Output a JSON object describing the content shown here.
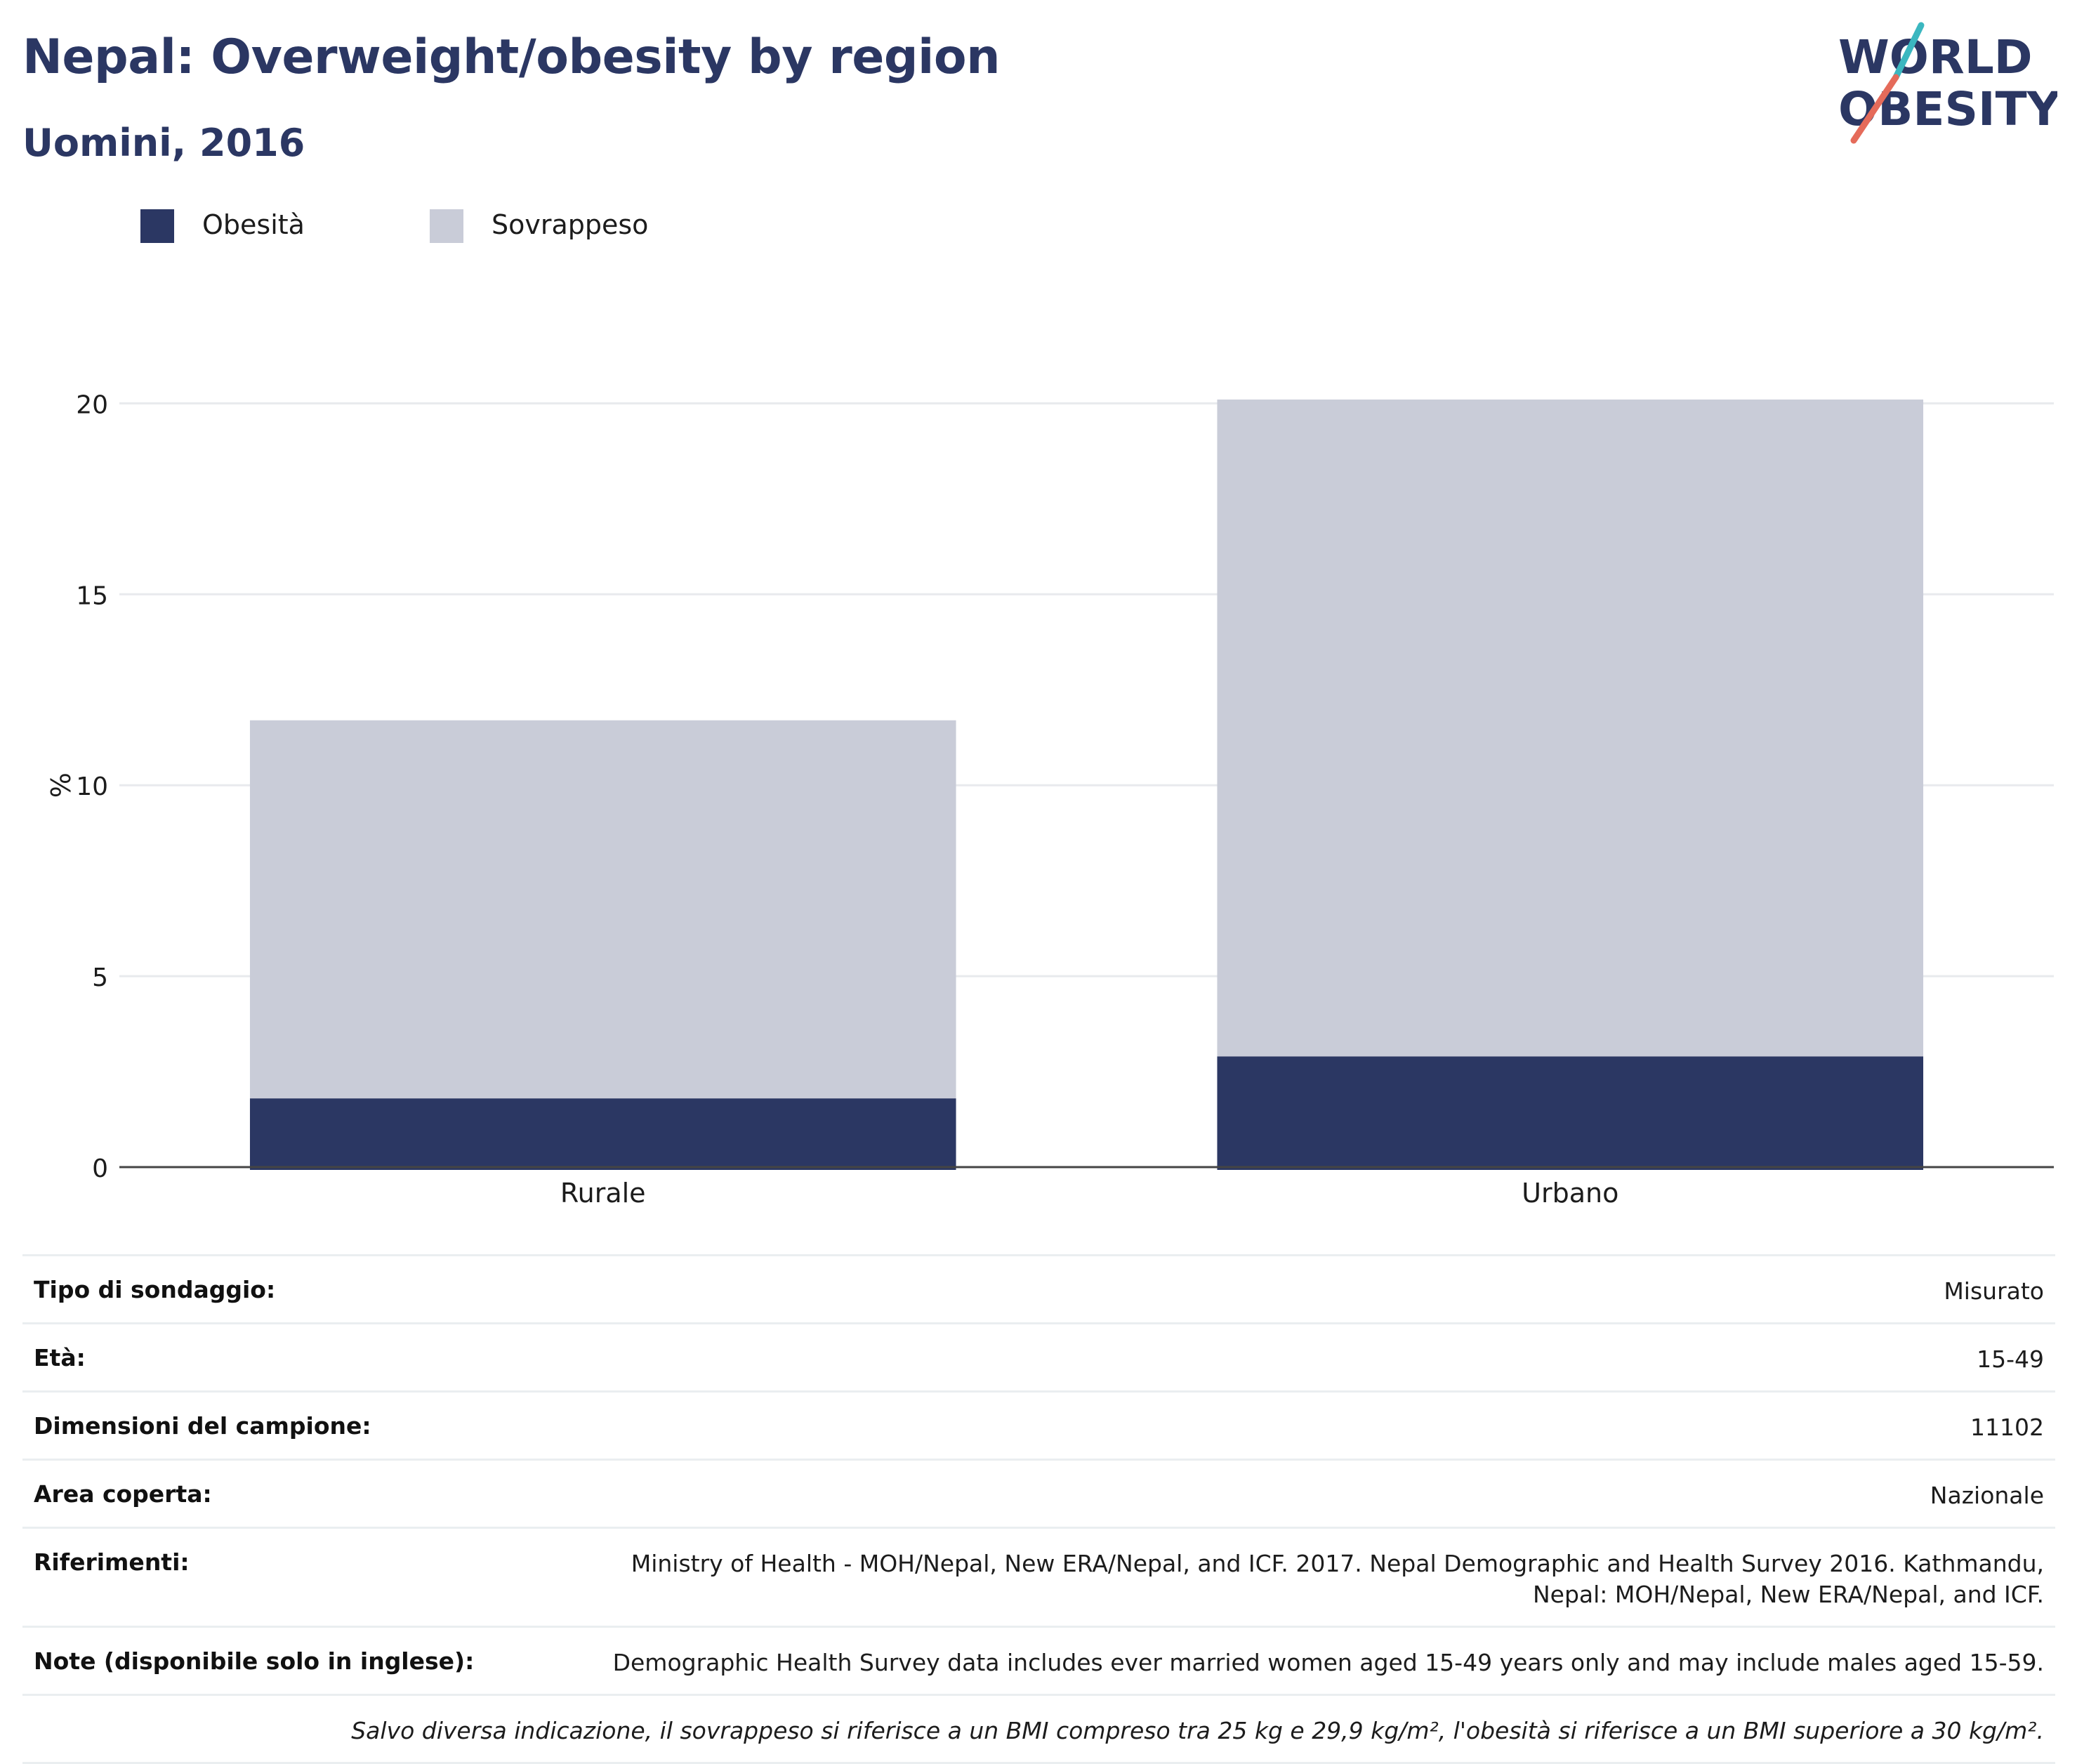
{
  "header": {
    "title": "Nepal: Overweight/obesity by region",
    "subtitle": "Uomini, 2016",
    "logo_line1": "WORLD",
    "logo_line2": "OBESITY"
  },
  "legend": [
    {
      "label": "Obesità",
      "color": "#2b3763"
    },
    {
      "label": "Sovrappeso",
      "color": "#c9ccd8"
    }
  ],
  "chart_data": {
    "type": "bar",
    "stacked": true,
    "categories": [
      "Rurale",
      "Urbano"
    ],
    "series": [
      {
        "name": "Obesità",
        "values": [
          1.8,
          2.9
        ],
        "color": "#2b3763"
      },
      {
        "name": "Sovrappeso",
        "values": [
          9.9,
          17.2
        ],
        "color": "#c9ccd8"
      }
    ],
    "title": "Nepal: Overweight/obesity by region",
    "subtitle": "Uomini, 2016",
    "xlabel": "",
    "ylabel": "%",
    "ylim": [
      0,
      21
    ],
    "yticks": [
      0,
      5,
      10,
      15,
      20
    ],
    "grid": true,
    "legend_position": "top-left"
  },
  "info": {
    "survey_type": {
      "label": "Tipo di sondaggio:",
      "value": "Misurato"
    },
    "age": {
      "label": "Età:",
      "value": "15-49"
    },
    "sample_size": {
      "label": "Dimensioni del campione:",
      "value": "11102"
    },
    "area": {
      "label": "Area coperta:",
      "value": "Nazionale"
    },
    "references": {
      "label": "Riferimenti:",
      "value": "Ministry of Health - MOH/Nepal, New ERA/Nepal, and ICF. 2017. Nepal Demographic and Health Survey 2016. Kathmandu, Nepal: MOH/Nepal, New ERA/Nepal, and ICF."
    },
    "notes": {
      "label": "Note (disponibile solo in inglese):",
      "value": "Demographic Health Survey data includes ever married women aged 15-49 years only and may include males aged 15-59."
    },
    "footnote": "Salvo diversa indicazione, il sovrappeso si riferisce a un BMI compreso tra 25 kg e 29,9 kg/m², l'obesità si riferisce a un BMI superiore a 30 kg/m²."
  }
}
